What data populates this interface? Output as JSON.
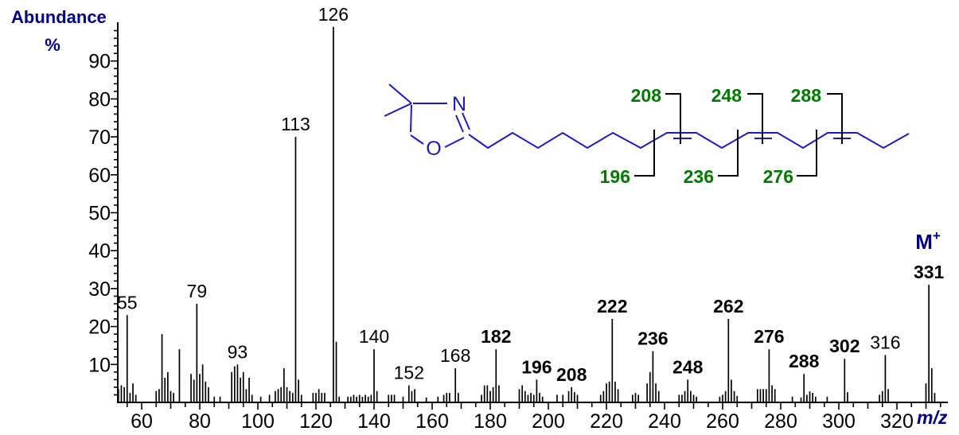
{
  "title": {
    "line1": "Abundance",
    "line2": "%"
  },
  "axis": {
    "x_label": "m/z"
  },
  "molecule": {
    "m": "M",
    "plus": "+"
  },
  "structure": {
    "atom_n": "N",
    "atom_o": "O",
    "cleavages": {
      "c196": "196",
      "c208": "208",
      "c236": "236",
      "c248": "248",
      "c276": "276",
      "c288": "288"
    }
  },
  "colors": {
    "black": "#000000",
    "blue": "#1e86c6",
    "green": "#007a00",
    "navy": "#00008b",
    "structure_blue": "#1a1acc",
    "background": "#ffffff"
  },
  "chart_data": {
    "type": "bar",
    "subtype": "mass-spectrum",
    "title": "",
    "xlabel": "m/z",
    "ylabel": "Abundance %",
    "xlim": [
      51,
      337
    ],
    "ylim": [
      0,
      100
    ],
    "grid": false,
    "xticks_labeled": [
      60,
      80,
      100,
      120,
      140,
      160,
      180,
      200,
      220,
      240,
      260,
      280,
      300,
      320
    ],
    "yticks_labeled": [
      10,
      20,
      30,
      40,
      50,
      60,
      70,
      80,
      90
    ],
    "molecular_ion": {
      "label": "M+",
      "mz": 331
    },
    "peaks": [
      [
        52,
        3.5
      ],
      [
        53,
        4.5
      ],
      [
        54,
        4
      ],
      [
        55,
        23
      ],
      [
        56,
        2.5
      ],
      [
        57,
        5
      ],
      [
        58,
        2
      ],
      [
        65,
        3
      ],
      [
        66,
        3.5
      ],
      [
        67,
        18
      ],
      [
        68,
        6.5
      ],
      [
        69,
        8
      ],
      [
        70,
        3
      ],
      [
        71,
        2.5
      ],
      [
        73,
        14
      ],
      [
        77,
        7.5
      ],
      [
        78,
        6
      ],
      [
        79,
        26
      ],
      [
        80,
        7.5
      ],
      [
        81,
        10
      ],
      [
        82,
        5.5
      ],
      [
        83,
        4
      ],
      [
        85,
        1.5
      ],
      [
        87,
        1.5
      ],
      [
        91,
        8
      ],
      [
        92,
        9.5
      ],
      [
        93,
        10
      ],
      [
        94,
        6.5
      ],
      [
        95,
        8
      ],
      [
        96,
        3.5
      ],
      [
        97,
        6.5
      ],
      [
        98,
        2
      ],
      [
        101,
        1.5
      ],
      [
        104,
        2
      ],
      [
        106,
        3
      ],
      [
        107,
        3.5
      ],
      [
        108,
        4
      ],
      [
        109,
        9
      ],
      [
        110,
        4
      ],
      [
        111,
        3
      ],
      [
        112,
        2.5
      ],
      [
        113,
        70
      ],
      [
        114,
        6
      ],
      [
        115,
        2
      ],
      [
        119,
        2.5
      ],
      [
        120,
        2.5
      ],
      [
        121,
        3.5
      ],
      [
        122,
        2.5
      ],
      [
        123,
        2.5
      ],
      [
        126,
        99
      ],
      [
        127,
        16
      ],
      [
        128,
        1.5
      ],
      [
        131,
        1.5
      ],
      [
        132,
        1.5
      ],
      [
        133,
        2
      ],
      [
        134,
        1.5
      ],
      [
        135,
        2
      ],
      [
        136,
        1.5
      ],
      [
        137,
        2
      ],
      [
        138,
        1.5
      ],
      [
        139,
        2
      ],
      [
        140,
        14
      ],
      [
        141,
        3
      ],
      [
        145,
        2
      ],
      [
        146,
        2
      ],
      [
        147,
        2
      ],
      [
        150,
        1.5
      ],
      [
        152,
        4.5
      ],
      [
        153,
        3
      ],
      [
        154,
        3.5
      ],
      [
        158,
        1.3
      ],
      [
        162,
        1.5
      ],
      [
        164,
        2
      ],
      [
        165,
        2.5
      ],
      [
        166,
        2.5
      ],
      [
        168,
        9
      ],
      [
        169,
        2.5
      ],
      [
        177,
        2
      ],
      [
        178,
        4.5
      ],
      [
        179,
        4.5
      ],
      [
        180,
        3
      ],
      [
        181,
        4
      ],
      [
        182,
        14
      ],
      [
        183,
        4.5
      ],
      [
        190,
        3.5
      ],
      [
        191,
        4.5
      ],
      [
        192,
        3
      ],
      [
        193,
        2
      ],
      [
        194,
        2.5
      ],
      [
        195,
        2
      ],
      [
        196,
        6
      ],
      [
        197,
        2.5
      ],
      [
        198,
        1.5
      ],
      [
        203,
        2
      ],
      [
        205,
        2
      ],
      [
        207,
        3
      ],
      [
        208,
        4
      ],
      [
        209,
        2.7
      ],
      [
        210,
        2
      ],
      [
        218,
        2
      ],
      [
        219,
        3
      ],
      [
        220,
        5
      ],
      [
        221,
        5.5
      ],
      [
        222,
        22
      ],
      [
        223,
        5.5
      ],
      [
        224,
        3.5
      ],
      [
        229,
        2
      ],
      [
        230,
        2.5
      ],
      [
        231,
        2
      ],
      [
        234,
        5
      ],
      [
        235,
        8
      ],
      [
        236,
        13.5
      ],
      [
        237,
        5
      ],
      [
        238,
        3
      ],
      [
        245,
        2
      ],
      [
        246,
        2
      ],
      [
        247,
        3
      ],
      [
        248,
        6
      ],
      [
        249,
        3
      ],
      [
        250,
        2
      ],
      [
        251,
        1.5
      ],
      [
        259,
        1.5
      ],
      [
        260,
        2
      ],
      [
        261,
        3
      ],
      [
        262,
        22
      ],
      [
        263,
        6
      ],
      [
        264,
        3
      ],
      [
        265,
        1.7
      ],
      [
        272,
        3.5
      ],
      [
        273,
        3.5
      ],
      [
        274,
        3.5
      ],
      [
        275,
        3.5
      ],
      [
        276,
        14
      ],
      [
        277,
        4.5
      ],
      [
        278,
        3.5
      ],
      [
        284,
        1.5
      ],
      [
        287,
        1.3
      ],
      [
        288,
        7.5
      ],
      [
        289,
        2
      ],
      [
        290,
        2.9
      ],
      [
        291,
        2.5
      ],
      [
        292,
        1.5
      ],
      [
        296,
        1.5
      ],
      [
        302,
        11.5
      ],
      [
        303,
        2.7
      ],
      [
        314,
        2
      ],
      [
        315,
        3
      ],
      [
        316,
        12.5
      ],
      [
        317,
        3.5
      ],
      [
        330,
        5
      ],
      [
        331,
        31
      ],
      [
        332,
        9
      ],
      [
        333,
        2.5
      ]
    ],
    "peak_labels": [
      {
        "text": "55",
        "mz": 55,
        "color": "black",
        "bold": false
      },
      {
        "text": "79",
        "mz": 79,
        "color": "black",
        "bold": false
      },
      {
        "text": "93",
        "mz": 93,
        "color": "black",
        "bold": false
      },
      {
        "text": "113",
        "mz": 113,
        "color": "black",
        "bold": false
      },
      {
        "text": "126",
        "mz": 126,
        "color": "black",
        "bold": false
      },
      {
        "text": "140",
        "mz": 140,
        "color": "black",
        "bold": false
      },
      {
        "text": "152",
        "mz": 152,
        "color": "black",
        "bold": false
      },
      {
        "text": "168",
        "mz": 168,
        "color": "black",
        "bold": false
      },
      {
        "text": "182",
        "mz": 182,
        "color": "blue",
        "bold": true
      },
      {
        "text": "196",
        "mz": 196,
        "color": "green",
        "bold": true
      },
      {
        "text": "208",
        "mz": 208,
        "color": "green",
        "bold": true
      },
      {
        "text": "222",
        "mz": 222,
        "color": "blue",
        "bold": true
      },
      {
        "text": "236",
        "mz": 236,
        "color": "green",
        "bold": true
      },
      {
        "text": "248",
        "mz": 248,
        "color": "green",
        "bold": true
      },
      {
        "text": "262",
        "mz": 262,
        "color": "blue",
        "bold": true
      },
      {
        "text": "276",
        "mz": 276,
        "color": "green",
        "bold": true
      },
      {
        "text": "288",
        "mz": 288,
        "color": "green",
        "bold": true
      },
      {
        "text": "302",
        "mz": 302,
        "color": "blue",
        "bold": true
      },
      {
        "text": "316",
        "mz": 316,
        "color": "black",
        "bold": false
      },
      {
        "text": "331",
        "mz": 331,
        "color": "navy",
        "bold": true
      }
    ]
  }
}
